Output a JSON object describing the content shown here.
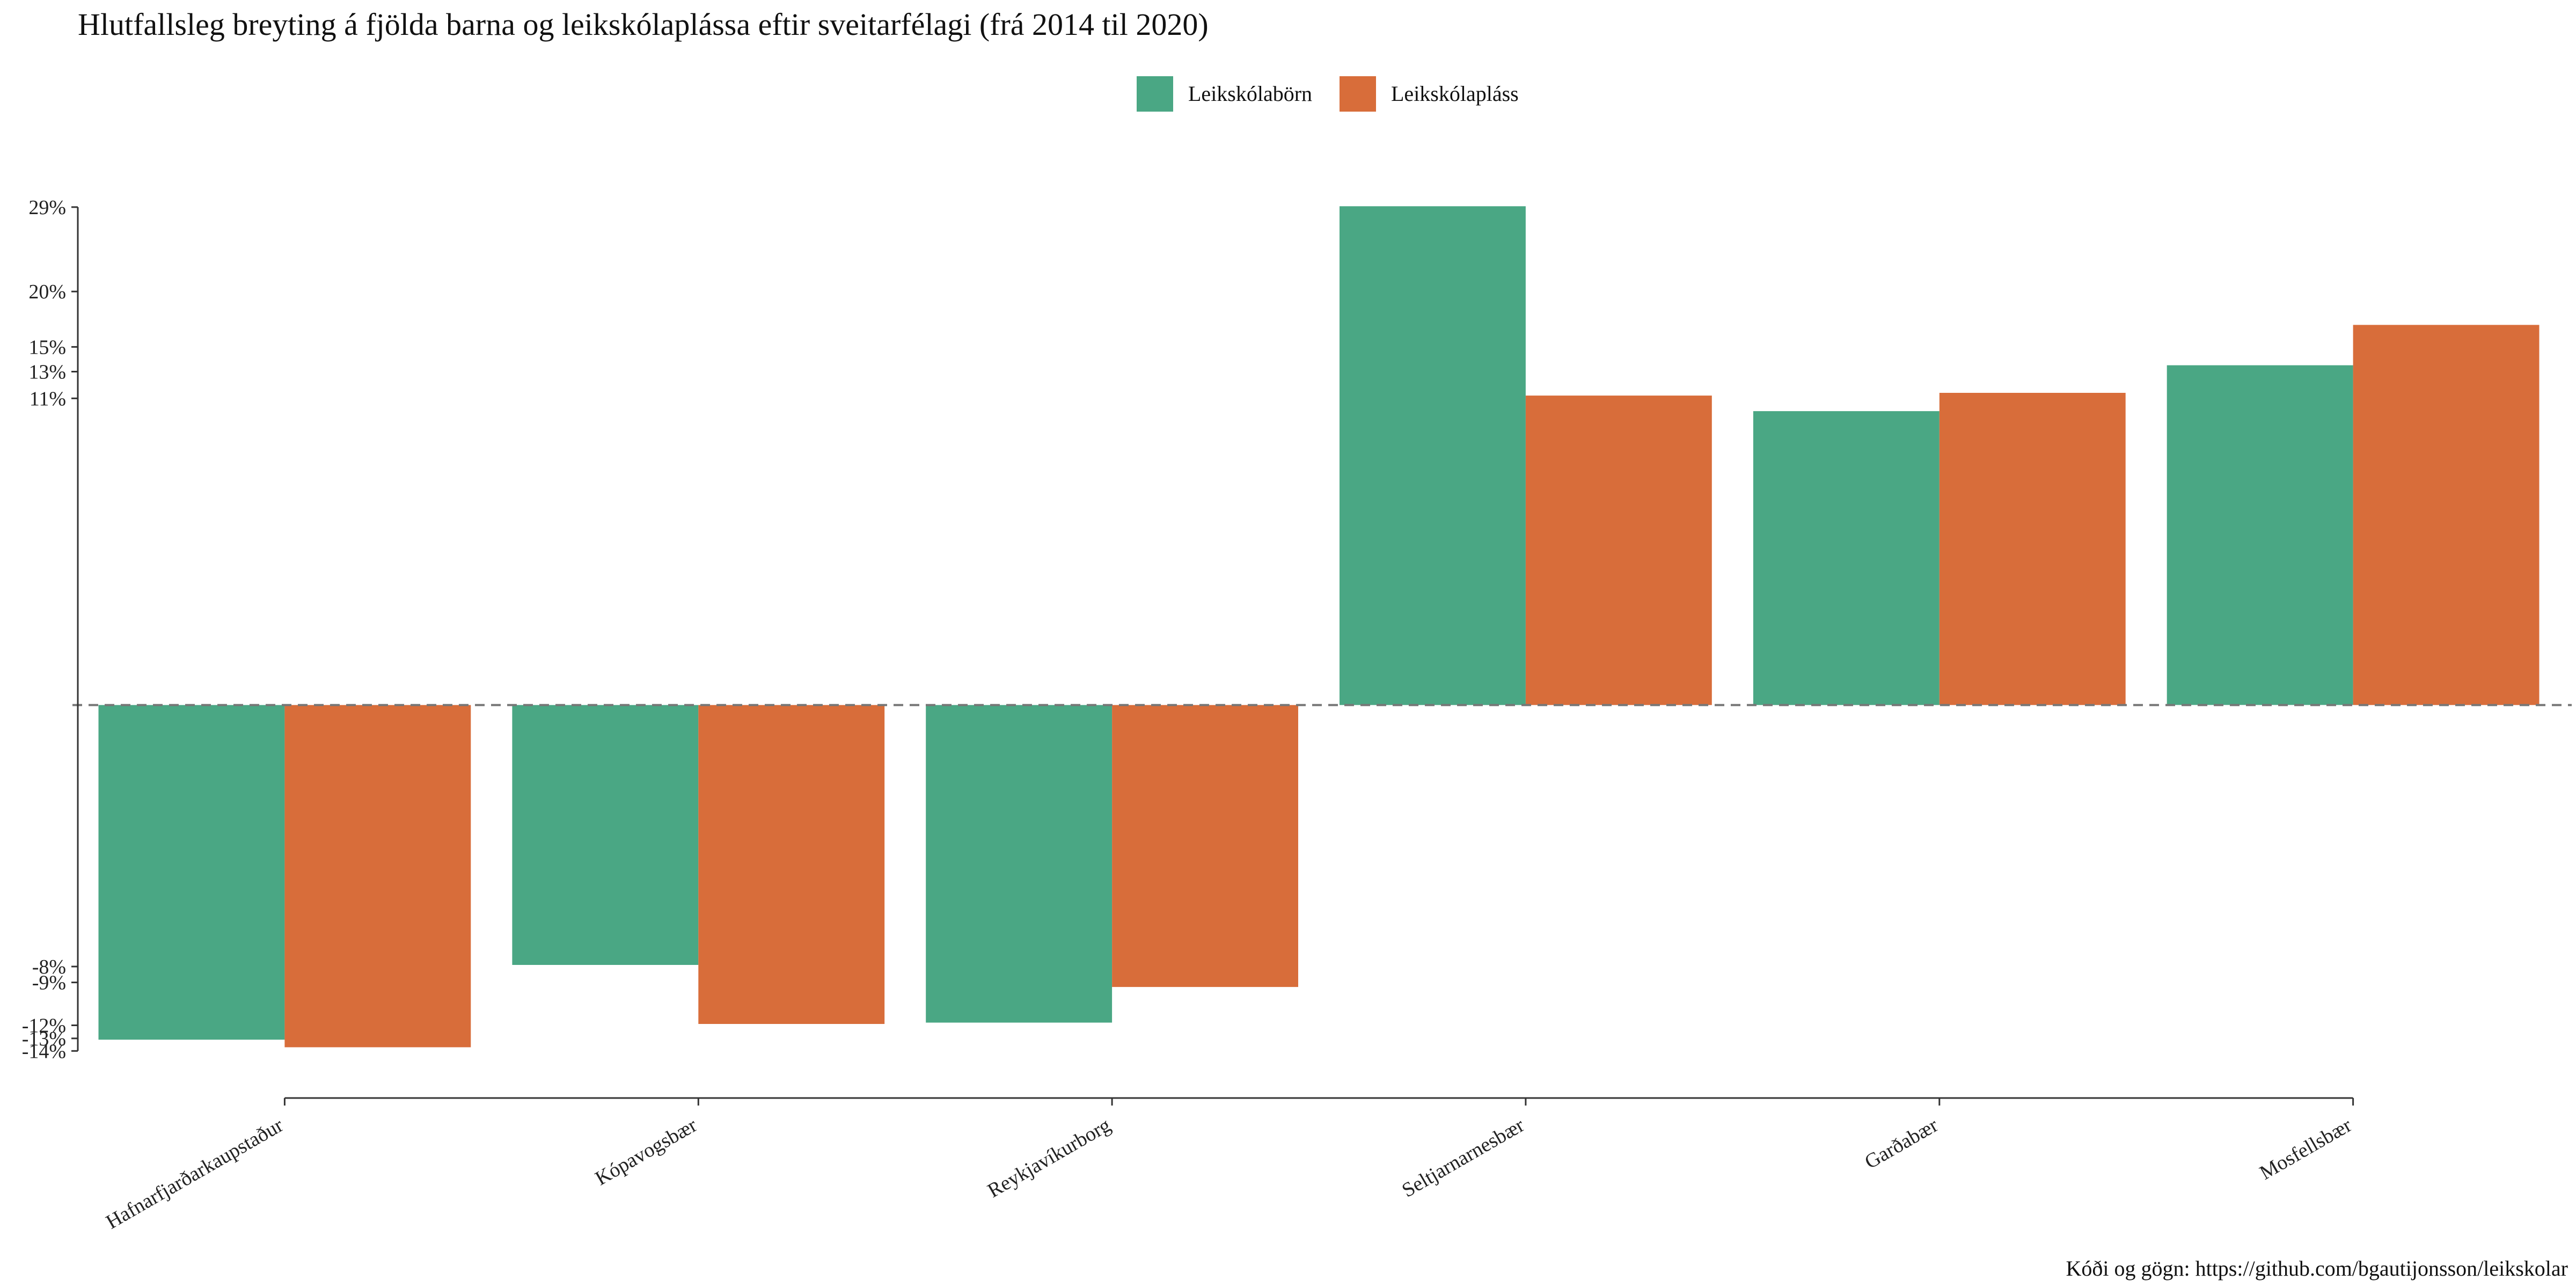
{
  "chart_data": {
    "type": "bar",
    "title": "Hlutfallsleg breyting á fjölda barna og leikskólaplássa eftir sveitarfélagi (frá 2014 til 2020)",
    "caption": "Kóði og gögn: https://github.com/bgautijonsson/leikskolar",
    "xlabel": "",
    "ylabel": "",
    "categories": [
      "Hafnarfjarðarkaupstaður",
      "Kópavogsbær",
      "Reykjavíkurborg",
      "Seltjarnarnesbær",
      "Garðabær",
      "Mosfellsbær"
    ],
    "series": [
      {
        "name": "Leikskólabörn",
        "color": "#4aa784",
        "values": [
          -0.131,
          -0.079,
          -0.118,
          0.291,
          0.101,
          0.135
        ]
      },
      {
        "name": "Leikskólapláss",
        "color": "#d86d3a",
        "values": [
          -0.137,
          -0.119,
          -0.093,
          0.112,
          0.114,
          0.169
        ]
      }
    ],
    "y_tick_values": [
      -0.14,
      -0.13,
      -0.12,
      -0.09,
      -0.08,
      0.11,
      0.13,
      0.15,
      0.2,
      0.29
    ],
    "y_tick_labels": [
      "-14%",
      "-13%",
      "-12%",
      "-9%",
      "-8%",
      "11%",
      "13%",
      "15%",
      "20%",
      "29%"
    ],
    "ylim": [
      -0.155,
      0.3
    ],
    "scale": "signed-sqrt",
    "reference_line": 0,
    "grid": false,
    "legend_position": "top"
  }
}
